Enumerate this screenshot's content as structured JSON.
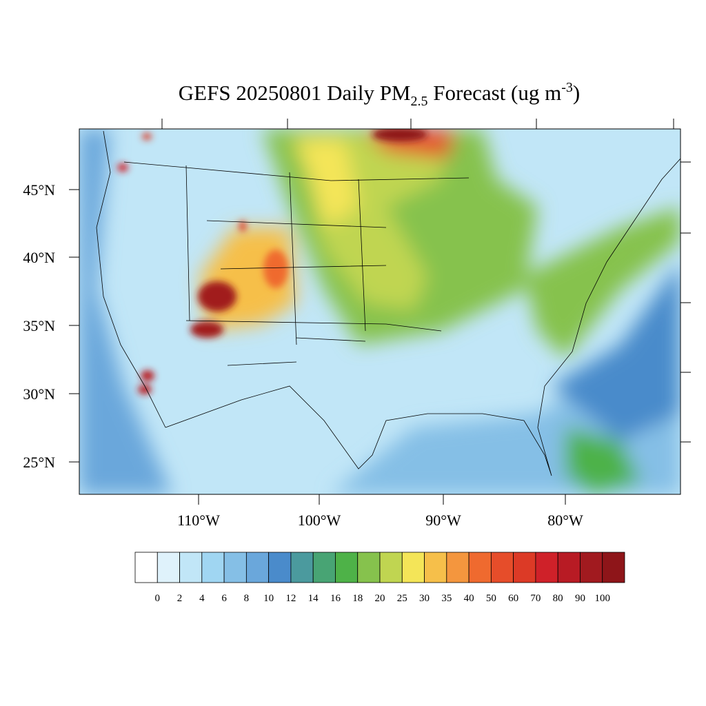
{
  "header": {
    "title_main": "GEFS 20250801 Daily PM",
    "title_sub": "2.5",
    "title_mid": " Forecast (ug m",
    "title_sup": "-3",
    "title_end": ")"
  },
  "map": {
    "lat_labels": [
      "45°N",
      "40°N",
      "35°N",
      "30°N",
      "25°N"
    ],
    "lon_labels": [
      "110°W",
      "100°W",
      "90°W",
      "80°W"
    ]
  },
  "colorbar": {
    "levels": [
      0,
      2,
      4,
      6,
      8,
      10,
      12,
      14,
      16,
      18,
      20,
      25,
      30,
      35,
      40,
      50,
      60,
      70,
      80,
      90,
      100
    ],
    "colors": [
      "#ffffff",
      "#dff2fb",
      "#c1e6f7",
      "#a0d6f2",
      "#85bfe6",
      "#6aa7db",
      "#4a8bcb",
      "#4b9a9e",
      "#48a474",
      "#4eb248",
      "#86c24d",
      "#c0d551",
      "#f4e558",
      "#f6bf4a",
      "#f4963e",
      "#ef6a2f",
      "#e64d2a",
      "#dc3a26",
      "#cf2129",
      "#b81b24",
      "#a11a1f",
      "#8e1519"
    ]
  }
}
